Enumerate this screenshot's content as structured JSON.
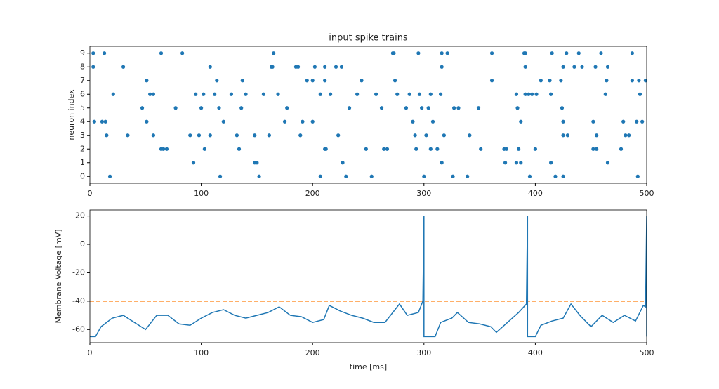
{
  "chart_data": [
    {
      "type": "scatter",
      "title": "input spike trains",
      "ylabel": "neuron index",
      "color": "#1f77b4",
      "xlim": [
        0,
        500
      ],
      "xticks": [
        0,
        100,
        200,
        300,
        400,
        500
      ],
      "ylim": [
        -0.5,
        9.5
      ],
      "yticks": [
        0,
        1,
        2,
        3,
        4,
        5,
        6,
        7,
        8,
        9
      ],
      "x": [
        3,
        13,
        64,
        83,
        165,
        272,
        273,
        295,
        316,
        321,
        361,
        390,
        391,
        415,
        428,
        439,
        459,
        487,
        3,
        30,
        108,
        163,
        164,
        185,
        187,
        202,
        211,
        221,
        226,
        316,
        391,
        425,
        435,
        442,
        454,
        465,
        51,
        114,
        137,
        195,
        200,
        211,
        244,
        274,
        361,
        405,
        413,
        423,
        464,
        487,
        493,
        499,
        21,
        54,
        57,
        95,
        102,
        112,
        127,
        140,
        156,
        169,
        207,
        216,
        240,
        257,
        276,
        287,
        296,
        306,
        315,
        383,
        391,
        394,
        397,
        401,
        414,
        463,
        494,
        47,
        77,
        100,
        116,
        136,
        177,
        233,
        262,
        284,
        298,
        304,
        327,
        331,
        349,
        384,
        424,
        4,
        11,
        14,
        51,
        120,
        175,
        191,
        200,
        290,
        308,
        387,
        425,
        452,
        479,
        491,
        496,
        15,
        34,
        57,
        90,
        98,
        108,
        132,
        148,
        161,
        189,
        223,
        292,
        302,
        318,
        341,
        425,
        429,
        455,
        481,
        484,
        64,
        66,
        69,
        103,
        134,
        211,
        212,
        248,
        264,
        267,
        293,
        306,
        312,
        351,
        372,
        374,
        385,
        400,
        452,
        455,
        477,
        93,
        148,
        150,
        227,
        316,
        373,
        383,
        387,
        414,
        465,
        18,
        117,
        152,
        207,
        230,
        253,
        300,
        326,
        339,
        395,
        418,
        425,
        492
      ],
      "values": [
        9,
        9,
        9,
        9,
        9,
        9,
        9,
        9,
        9,
        9,
        9,
        9,
        9,
        9,
        9,
        9,
        9,
        9,
        8,
        8,
        8,
        8,
        8,
        8,
        8,
        8,
        8,
        8,
        8,
        8,
        8,
        8,
        8,
        8,
        8,
        8,
        7,
        7,
        7,
        7,
        7,
        7,
        7,
        7,
        7,
        7,
        7,
        7,
        7,
        7,
        7,
        7,
        6,
        6,
        6,
        6,
        6,
        6,
        6,
        6,
        6,
        6,
        6,
        6,
        6,
        6,
        6,
        6,
        6,
        6,
        6,
        6,
        6,
        6,
        6,
        6,
        6,
        6,
        6,
        5,
        5,
        5,
        5,
        5,
        5,
        5,
        5,
        5,
        5,
        5,
        5,
        5,
        5,
        5,
        5,
        4,
        4,
        4,
        4,
        4,
        4,
        4,
        4,
        4,
        4,
        4,
        4,
        4,
        4,
        4,
        4,
        3,
        3,
        3,
        3,
        3,
        3,
        3,
        3,
        3,
        3,
        3,
        3,
        3,
        3,
        3,
        3,
        3,
        3,
        3,
        3,
        2,
        2,
        2,
        2,
        2,
        2,
        2,
        2,
        2,
        2,
        2,
        2,
        2,
        2,
        2,
        2,
        2,
        2,
        2,
        2,
        2,
        1,
        1,
        1,
        1,
        1,
        1,
        1,
        1,
        1,
        1,
        0,
        0,
        0,
        0,
        0,
        0,
        0,
        0,
        0,
        0,
        0,
        0,
        0
      ]
    },
    {
      "type": "line",
      "xlabel": "time [ms]",
      "ylabel": "Membrane Voltage [mV]",
      "color": "#1f77b4",
      "threshold": -40,
      "threshold_color": "#ff7f0e",
      "xlim": [
        0,
        500
      ],
      "xticks": [
        0,
        100,
        200,
        300,
        400,
        500
      ],
      "ylim": [
        -69.25,
        24.25
      ],
      "yticks": [
        -60,
        -40,
        -20,
        0,
        20
      ],
      "x": [
        0,
        5,
        10,
        20,
        30,
        40,
        50,
        60,
        70,
        80,
        90,
        100,
        110,
        120,
        130,
        140,
        150,
        160,
        170,
        180,
        190,
        200,
        210,
        215,
        225,
        235,
        245,
        255,
        265,
        278,
        285,
        295,
        299,
        300,
        300,
        310,
        315,
        325,
        330,
        340,
        350,
        360,
        365,
        375,
        385,
        392,
        393,
        393,
        400,
        405,
        415,
        425,
        432,
        440,
        450,
        460,
        470,
        480,
        490,
        497,
        499,
        500,
        500
      ],
      "values": [
        -65,
        -65,
        -58,
        -52,
        -50,
        -55,
        -60,
        -50,
        -50,
        -56,
        -57,
        -52,
        -48,
        -46,
        -50,
        -52,
        -50,
        -48,
        -44,
        -50,
        -51,
        -55,
        -53,
        -43,
        -47,
        -50,
        -52,
        -55,
        -55,
        -42,
        -50,
        -48,
        -40,
        20,
        -65,
        -65,
        -55,
        -52,
        -48,
        -55,
        -56,
        -58,
        -62,
        -55,
        -48,
        -42,
        20,
        -65,
        -65,
        -57,
        -54,
        -52,
        -42,
        -50,
        -58,
        -50,
        -55,
        -50,
        -54,
        -43,
        -44,
        20,
        -65
      ]
    }
  ]
}
